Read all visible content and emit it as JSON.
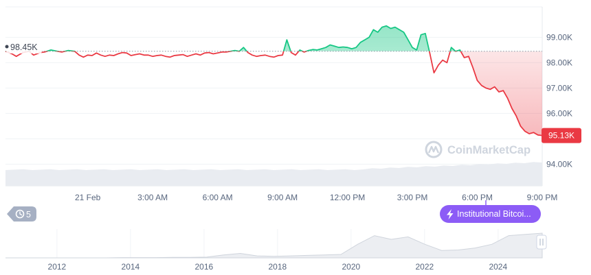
{
  "chart_data": {
    "type": "area",
    "title": "",
    "xlabel": "",
    "ylabel": "",
    "ylim": [
      93.2,
      100.2
    ],
    "y_ticks": [
      {
        "value": 99.0,
        "label": "99.00K"
      },
      {
        "value": 98.0,
        "label": "98.00K"
      },
      {
        "value": 97.0,
        "label": "97.00K"
      },
      {
        "value": 96.0,
        "label": "96.00K"
      },
      {
        "value": 95.0,
        "label": ""
      },
      {
        "value": 94.0,
        "label": "94.00K"
      }
    ],
    "x_range_hours": [
      -3.8,
      21.0
    ],
    "x_ticks": [
      {
        "hour": 0,
        "label": "21 Feb"
      },
      {
        "hour": 3,
        "label": "3:00 AM"
      },
      {
        "hour": 6,
        "label": "6:00 AM"
      },
      {
        "hour": 9,
        "label": "9:00 AM"
      },
      {
        "hour": 12,
        "label": "12:00 PM"
      },
      {
        "hour": 15,
        "label": "3:00 PM"
      },
      {
        "hour": 18,
        "label": "6:00 PM"
      },
      {
        "hour": 21,
        "label": "9:00 PM"
      }
    ],
    "baseline": {
      "value": 98.45,
      "label": "98.45K"
    },
    "current": {
      "value": 95.13,
      "label": "95.13K"
    },
    "grid": true,
    "colors": {
      "up": "#16c784",
      "down": "#ea3943",
      "grid": "#eff2f5",
      "axis_text": "#58667e",
      "volume": "#e9ecf1"
    },
    "series": [
      {
        "x": [
          -3.8,
          -3.5,
          -3.3,
          -3.0,
          -2.7,
          -2.5,
          -2.2,
          -2.0,
          -1.7,
          -1.4,
          -1.2,
          -0.9,
          -0.6,
          -0.4,
          -0.2,
          0.0,
          0.2,
          0.4,
          0.6,
          0.8,
          1.0,
          1.2,
          1.4,
          1.6,
          1.8,
          2.0,
          2.2,
          2.4,
          2.6,
          2.8,
          3.0,
          3.2,
          3.4,
          3.6,
          3.8,
          4.0,
          4.2,
          4.4,
          4.6,
          4.8,
          5.0,
          5.2,
          5.4,
          5.6,
          5.8,
          6.0,
          6.2,
          6.4,
          6.6,
          6.8,
          7.0,
          7.2,
          7.4,
          7.6,
          7.8,
          8.0,
          8.2,
          8.4,
          8.6,
          8.8,
          9.0,
          9.2,
          9.4,
          9.6,
          9.8,
          10.0,
          10.2,
          10.4,
          10.6,
          10.8,
          11.0,
          11.2,
          11.4,
          11.6,
          11.8,
          12.0,
          12.2,
          12.4,
          12.6,
          12.8,
          13.0,
          13.2,
          13.4,
          13.6,
          13.8,
          14.0,
          14.2,
          14.4,
          14.6,
          14.8,
          15.0,
          15.2,
          15.4,
          15.6,
          15.8,
          16.0,
          16.2,
          16.4,
          16.6,
          16.8,
          17.0,
          17.2,
          17.4,
          17.6,
          17.8,
          18.0,
          18.2,
          18.4,
          18.6,
          18.8,
          19.0,
          19.2,
          19.4,
          19.6,
          19.8,
          20.0,
          20.2,
          20.4,
          20.6,
          20.8,
          21.0
        ],
        "values": [
          98.45,
          98.35,
          98.25,
          98.4,
          98.45,
          98.3,
          98.4,
          98.42,
          98.5,
          98.45,
          98.42,
          98.48,
          98.45,
          98.3,
          98.22,
          98.3,
          98.28,
          98.38,
          98.3,
          98.25,
          98.3,
          98.28,
          98.35,
          98.4,
          98.38,
          98.28,
          98.32,
          98.35,
          98.3,
          98.3,
          98.25,
          98.28,
          98.3,
          98.25,
          98.22,
          98.28,
          98.3,
          98.32,
          98.25,
          98.3,
          98.35,
          98.3,
          98.38,
          98.4,
          98.35,
          98.38,
          98.42,
          98.42,
          98.45,
          98.48,
          98.45,
          98.6,
          98.4,
          98.3,
          98.25,
          98.28,
          98.3,
          98.25,
          98.22,
          98.28,
          98.3,
          98.9,
          98.4,
          98.3,
          98.5,
          98.42,
          98.48,
          98.52,
          98.5,
          98.55,
          98.6,
          98.7,
          98.65,
          98.6,
          98.62,
          98.6,
          98.55,
          98.6,
          98.8,
          98.9,
          99.0,
          99.3,
          99.2,
          99.4,
          99.45,
          99.35,
          99.4,
          99.3,
          99.2,
          98.9,
          98.6,
          98.5,
          99.1,
          99.15,
          98.4,
          97.6,
          97.9,
          98.1,
          98.0,
          98.6,
          98.45,
          98.5,
          98.2,
          98.25,
          97.8,
          97.3,
          97.1,
          97.0,
          96.95,
          97.05,
          96.85,
          96.9,
          96.6,
          96.2,
          95.9,
          95.5,
          95.3,
          95.2,
          95.25,
          95.15,
          95.13
        ]
      }
    ],
    "navigator": {
      "x_range_years": [
        2010.6,
        2025.2
      ],
      "x_ticks": [
        {
          "year": 2012,
          "label": "2012"
        },
        {
          "year": 2014,
          "label": "2014"
        },
        {
          "year": 2016,
          "label": "2016"
        },
        {
          "year": 2018,
          "label": "2018"
        },
        {
          "year": 2020,
          "label": "2020"
        },
        {
          "year": 2022,
          "label": "2022"
        },
        {
          "year": 2024,
          "label": "2024"
        }
      ],
      "values": [
        0,
        0,
        0,
        0,
        0,
        0,
        0,
        0.01,
        0.01,
        0.01,
        0.02,
        0.02,
        0.03,
        0.12,
        0.18,
        0.08,
        0.06,
        0.08,
        0.1,
        0.12,
        0.14,
        0.55,
        0.9,
        0.75,
        0.85,
        0.55,
        0.3,
        0.32,
        0.4,
        0.55,
        0.9,
        0.95,
        1.0
      ]
    }
  },
  "controls": {
    "history_count": "5",
    "event_chip_label": "Institutional Bitcoi..."
  },
  "watermark": {
    "label": "CoinMarketCap"
  }
}
